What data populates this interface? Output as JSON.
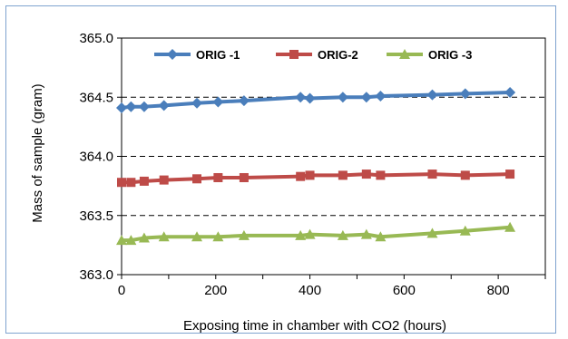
{
  "chart_data": {
    "type": "line",
    "title": "",
    "xlabel": "Exposing time in chamber with CO2 (hours)",
    "ylabel": "Mass of sample (gram)",
    "xlim": [
      0,
      900
    ],
    "ylim": [
      363.0,
      365.0
    ],
    "xticks": [
      0,
      200,
      400,
      600,
      800
    ],
    "xtick_labels": [
      "0",
      "200",
      "400",
      "600",
      "800"
    ],
    "yticks": [
      363.0,
      363.5,
      364.0,
      364.5,
      365.0
    ],
    "ytick_labels": [
      "363.0",
      "363.5",
      "364.0",
      "364.5",
      "365.0"
    ],
    "grid": "horizontal dashed",
    "legend_position": "top",
    "series": [
      {
        "name": "ORIG -1",
        "color": "#4a7ebb",
        "marker": "diamond",
        "x": [
          0,
          20,
          48,
          90,
          160,
          205,
          260,
          380,
          400,
          470,
          520,
          550,
          660,
          730,
          825
        ],
        "y": [
          364.41,
          364.42,
          364.42,
          364.43,
          364.45,
          364.46,
          364.47,
          364.5,
          364.49,
          364.5,
          364.5,
          364.51,
          364.52,
          364.53,
          364.54
        ]
      },
      {
        "name": "ORIG-2",
        "color": "#be4b48",
        "marker": "square",
        "x": [
          0,
          20,
          48,
          90,
          160,
          205,
          260,
          380,
          400,
          470,
          520,
          550,
          660,
          730,
          825
        ],
        "y": [
          363.78,
          363.78,
          363.79,
          363.8,
          363.81,
          363.82,
          363.82,
          363.83,
          363.84,
          363.84,
          363.85,
          363.84,
          363.85,
          363.84,
          363.85
        ]
      },
      {
        "name": "ORIG -3",
        "color": "#98b954",
        "marker": "triangle",
        "x": [
          0,
          20,
          48,
          90,
          160,
          205,
          260,
          380,
          400,
          470,
          520,
          550,
          660,
          730,
          825
        ],
        "y": [
          363.29,
          363.29,
          363.31,
          363.32,
          363.32,
          363.32,
          363.33,
          363.33,
          363.34,
          363.33,
          363.34,
          363.32,
          363.35,
          363.37,
          363.4
        ]
      }
    ]
  }
}
